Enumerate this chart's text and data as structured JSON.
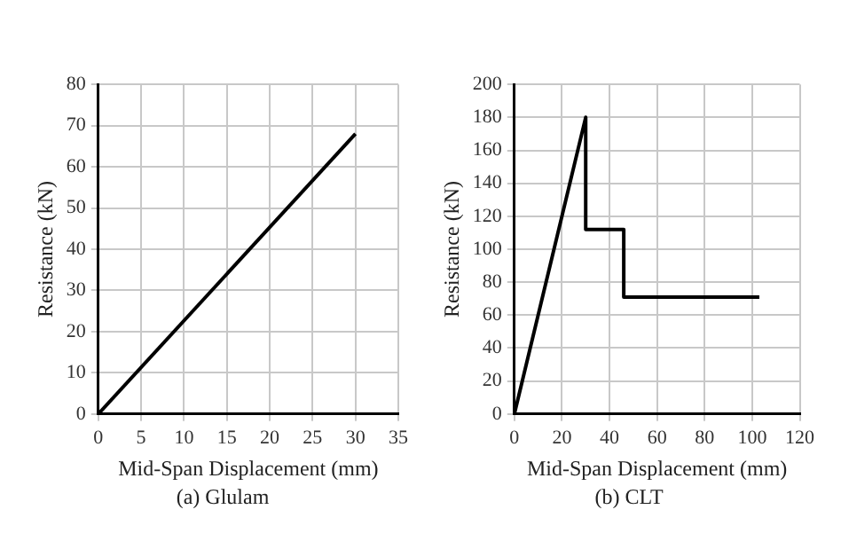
{
  "chart_data": [
    {
      "type": "line",
      "xlabel": "Mid-Span Displacement (mm)",
      "ylabel": "Resistance (kN)",
      "annotations": [
        "(a) Glulam"
      ],
      "series": [
        {
          "color": "#000000",
          "x": [
            0,
            30
          ],
          "values": [
            0,
            68
          ]
        }
      ],
      "xlim": [
        0,
        35
      ],
      "xticks": [
        0,
        5,
        10,
        15,
        20,
        25,
        30,
        35
      ],
      "ylim": [
        0,
        80
      ],
      "yticks": [
        0,
        10,
        20,
        30,
        40,
        50,
        60,
        70,
        80
      ],
      "grid": true,
      "marker": "none",
      "line_style": "solid"
    },
    {
      "type": "line",
      "xlabel": "Mid-Span Displacement (mm)",
      "ylabel": "Resistance (kN)",
      "annotations": [
        "(b) CLT"
      ],
      "series": [
        {
          "color": "#000000",
          "x": [
            0,
            30,
            30,
            46,
            46,
            103
          ],
          "values": [
            0,
            180,
            112,
            112,
            71,
            71
          ]
        }
      ],
      "xlim": [
        0,
        120
      ],
      "xticks": [
        0,
        20,
        40,
        60,
        80,
        100,
        120
      ],
      "ylim": [
        0,
        200
      ],
      "yticks": [
        0,
        20,
        40,
        60,
        80,
        100,
        120,
        140,
        160,
        180,
        200
      ],
      "grid": true,
      "marker": "none",
      "line_style": "solid"
    }
  ]
}
